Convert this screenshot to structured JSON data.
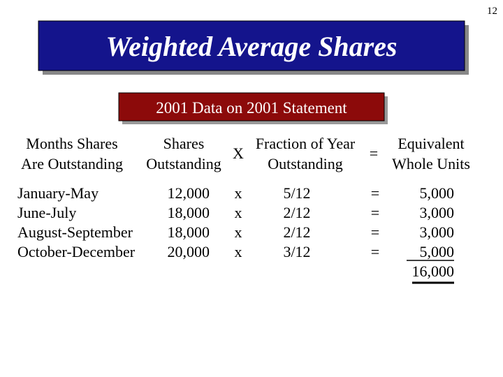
{
  "page_number": "12",
  "title": "Weighted Average Shares",
  "subtitle": "2001 Data on 2001 Statement",
  "table": {
    "headers": [
      [
        "Months Shares",
        "Are Outstanding"
      ],
      [
        "Shares",
        "Outstanding"
      ],
      "X",
      [
        "Fraction of Year",
        "Outstanding"
      ],
      "=",
      [
        "Equivalent",
        "Whole Units"
      ]
    ],
    "rows": [
      [
        "January-May",
        "12,000",
        "x",
        "5/12",
        "=",
        "5,000"
      ],
      [
        "June-July",
        "18,000",
        "x",
        "2/12",
        "=",
        "3,000"
      ],
      [
        "August-September",
        "18,000",
        "x",
        "2/12",
        "=",
        "3,000"
      ],
      [
        "October-December",
        "20,000",
        "x",
        "3/12",
        "=",
        "5,000"
      ]
    ],
    "total": "16,000"
  }
}
